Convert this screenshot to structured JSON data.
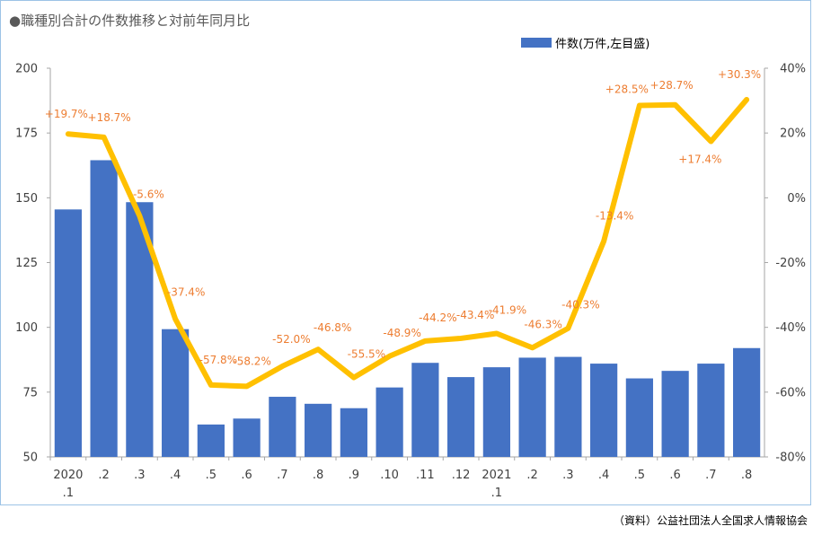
{
  "title": "●職種別合計の件数推移と対前年同月比",
  "source": "（資料）公益社団法人全国求人情報協会",
  "chart_data": {
    "type": "bar+line",
    "categories": [
      {
        "line1": "2020",
        "line2": ".1"
      },
      {
        "line1": ".2",
        "line2": ""
      },
      {
        "line1": ".3",
        "line2": ""
      },
      {
        "line1": ".4",
        "line2": ""
      },
      {
        "line1": ".5",
        "line2": ""
      },
      {
        "line1": ".6",
        "line2": ""
      },
      {
        "line1": ".7",
        "line2": ""
      },
      {
        "line1": ".8",
        "line2": ""
      },
      {
        "line1": ".9",
        "line2": ""
      },
      {
        "line1": ".10",
        "line2": ""
      },
      {
        "line1": ".11",
        "line2": ""
      },
      {
        "line1": ".12",
        "line2": ""
      },
      {
        "line1": "2021",
        "line2": ".1"
      },
      {
        "line1": ".2",
        "line2": ""
      },
      {
        "line1": ".3",
        "line2": ""
      },
      {
        "line1": ".4",
        "line2": ""
      },
      {
        "line1": ".5",
        "line2": ""
      },
      {
        "line1": ".6",
        "line2": ""
      },
      {
        "line1": ".7",
        "line2": ""
      },
      {
        "line1": ".8",
        "line2": ""
      }
    ],
    "bar_series": {
      "name": "件数(万件,左目盛)",
      "color": "#4472c4",
      "values": [
        145.5,
        164.5,
        148.3,
        99.3,
        62.5,
        64.8,
        73.2,
        70.5,
        68.8,
        76.8,
        86.3,
        80.8,
        84.6,
        88.3,
        88.6,
        86.0,
        80.3,
        83.2,
        86.0,
        92.0
      ]
    },
    "line_series": {
      "color": "#ffc000",
      "values": [
        19.7,
        18.7,
        -5.6,
        -37.4,
        -57.8,
        -58.2,
        -52.0,
        -46.8,
        -55.5,
        -48.9,
        -44.2,
        -43.4,
        -41.9,
        -46.3,
        -40.3,
        -13.4,
        28.5,
        28.7,
        17.4,
        30.3
      ],
      "labels": [
        "+19.7%",
        "+18.7%",
        "-5.6%",
        "-37.4%",
        "-57.8%",
        "-58.2%",
        "-52.0%",
        "-46.8%",
        "-55.5%",
        "-48.9%",
        "-44.2%",
        "-43.4%",
        "-41.9%",
        "-46.3%",
        "-40.3%",
        "-13.4%",
        "+28.5%",
        "+28.7%",
        "+17.4%",
        "+30.3%"
      ]
    },
    "y_left": {
      "ylim": [
        50,
        200
      ],
      "ticks": [
        "50",
        "75",
        "100",
        "125",
        "150",
        "175",
        "200"
      ]
    },
    "y_right": {
      "ylim": [
        -80,
        40
      ],
      "ticks": [
        "-80%",
        "-60%",
        "-40%",
        "-20%",
        "0%",
        "20%",
        "40%"
      ]
    },
    "label_color": "#ed7d31",
    "grid": false,
    "legend_position": "top-right"
  }
}
